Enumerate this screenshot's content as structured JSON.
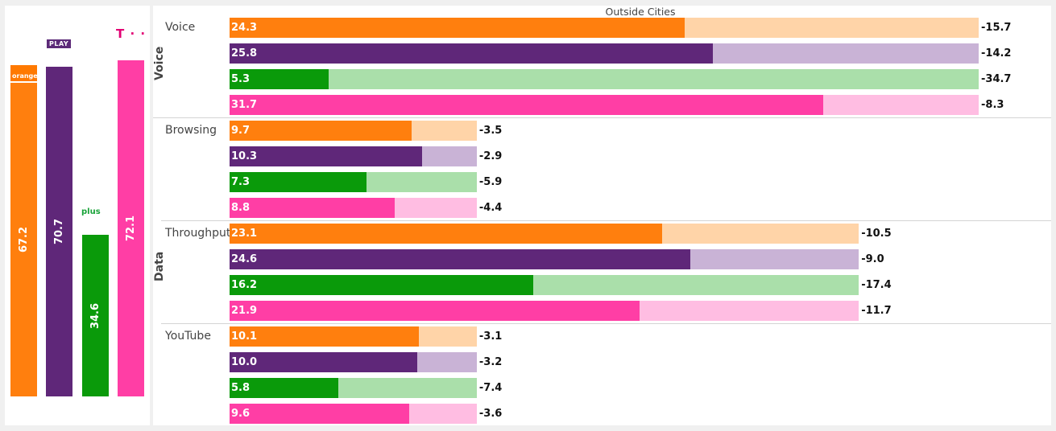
{
  "operators": [
    {
      "logo_text": "orange",
      "score": "67.2",
      "value": 67.2,
      "color": "#ff7f0e",
      "logo": "orange-logo"
    },
    {
      "logo_text": "PLAY",
      "score": "70.7",
      "value": 70.7,
      "color": "#5f2779",
      "logo": "play-logo"
    },
    {
      "logo_text": "plus",
      "score": "34.6",
      "value": 34.6,
      "color": "#0a9a0a",
      "logo": "plus-logo"
    },
    {
      "logo_text": "T · ·",
      "score": "72.1",
      "value": 72.1,
      "color": "#ff3ea5",
      "logo": "t-mobile-logo"
    }
  ],
  "light_colors": [
    "#ffd4a8",
    "#c9b3d6",
    "#aadfaa",
    "#ffbde2"
  ],
  "chart_data": {
    "type": "bar",
    "title": "Outside Cities",
    "groups": [
      {
        "name": "Voice",
        "metrics": [
          "Voice"
        ]
      },
      {
        "name": "Data",
        "metrics": [
          "Browsing",
          "Throughput",
          "YouTube"
        ]
      }
    ],
    "metrics": [
      {
        "name": "Voice",
        "max": 40.0,
        "values": [
          24.3,
          25.8,
          5.3,
          31.7
        ],
        "gaps": [
          -15.7,
          -14.2,
          -34.7,
          -8.3
        ],
        "value_labels": [
          "24.3",
          "25.8",
          "5.3",
          "31.7"
        ],
        "gap_labels": [
          "-15.7",
          "-14.2",
          "-34.7",
          "-8.3"
        ]
      },
      {
        "name": "Browsing",
        "max": 13.2,
        "values": [
          9.7,
          10.3,
          7.3,
          8.8
        ],
        "gaps": [
          -3.5,
          -2.9,
          -5.9,
          -4.4
        ],
        "value_labels": [
          "9.7",
          "10.3",
          "7.3",
          "8.8"
        ],
        "gap_labels": [
          "-3.5",
          "-2.9",
          "-5.9",
          "-4.4"
        ]
      },
      {
        "name": "Throughput",
        "max": 33.6,
        "values": [
          23.1,
          24.6,
          16.2,
          21.9
        ],
        "gaps": [
          -10.5,
          -9.0,
          -17.4,
          -11.7
        ],
        "value_labels": [
          "23.1",
          "24.6",
          "16.2",
          "21.9"
        ],
        "gap_labels": [
          "-10.5",
          "-9.0",
          "-17.4",
          "-11.7"
        ]
      },
      {
        "name": "YouTube",
        "max": 13.2,
        "values": [
          10.1,
          10.0,
          5.8,
          9.6
        ],
        "gaps": [
          -3.1,
          -3.2,
          -7.4,
          -3.6
        ],
        "value_labels": [
          "10.1",
          "10.0",
          "5.8",
          "9.6"
        ],
        "gap_labels": [
          "-3.1",
          "-3.2",
          "-7.4",
          "-3.6"
        ]
      }
    ]
  }
}
